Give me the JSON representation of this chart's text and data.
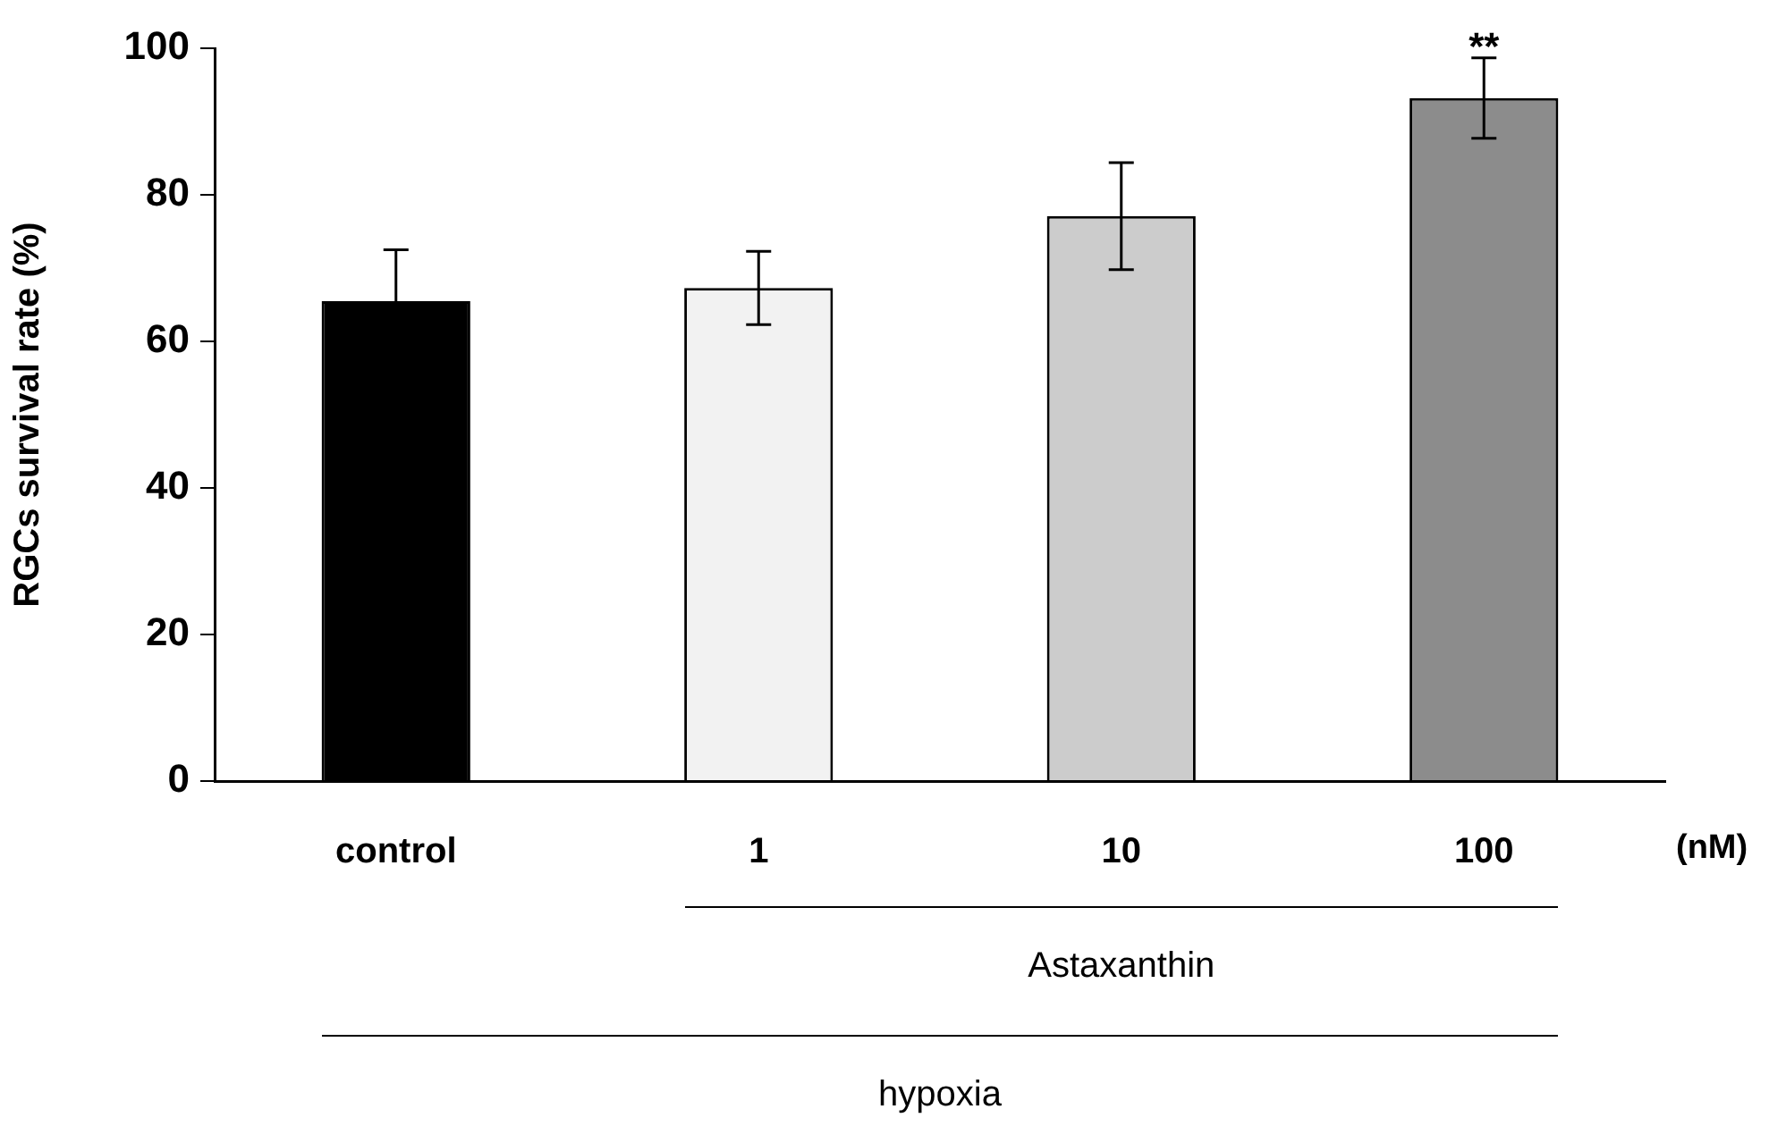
{
  "chart_data": {
    "type": "bar",
    "categories": [
      "control",
      "1",
      "10",
      "100"
    ],
    "values": [
      65.5,
      67.3,
      77.1,
      93.2
    ],
    "colors": [
      "#000000",
      "#f2f2f2",
      "#cccccc",
      "#8c8c8c"
    ],
    "errors": [
      7,
      5,
      7.3,
      5.5
    ],
    "ylabel": "RGCs survival rate (%)",
    "ylim": [
      0,
      100
    ],
    "yticks": [
      0,
      20,
      40,
      60,
      80,
      100
    ],
    "grid": false,
    "legend": false,
    "annotations": [
      {
        "text": "**",
        "x": "100",
        "y": 98.7
      },
      "(nM)",
      "Astaxanthin",
      "hypoxia"
    ]
  }
}
